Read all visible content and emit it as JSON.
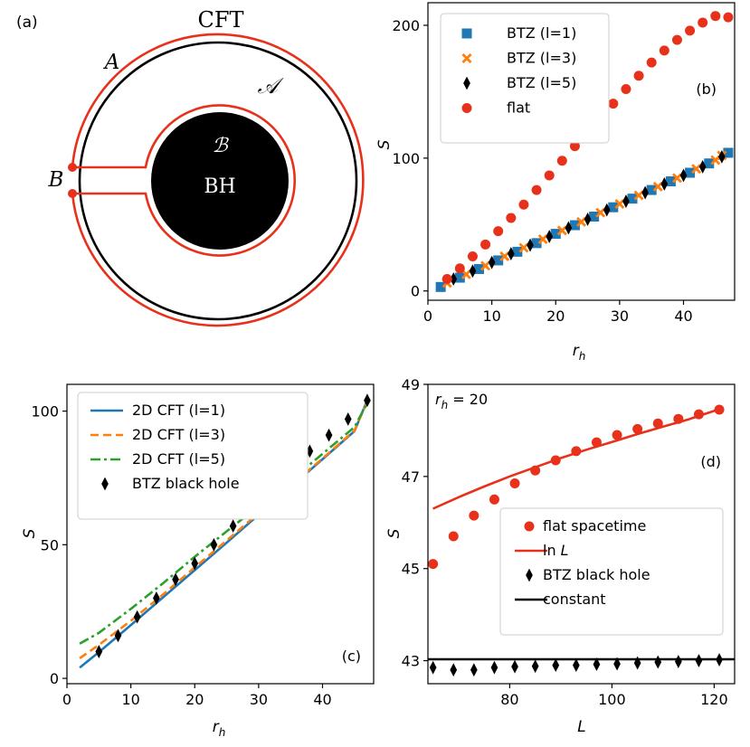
{
  "panel_labels": {
    "a": "(a)",
    "b": "(b)",
    "c": "(c)",
    "d": "(d)"
  },
  "diagram": {
    "cft": "CFT",
    "region_a": "A",
    "region_a_script": "𝒜",
    "region_b": "B",
    "region_b_script": "ℬ",
    "bh": "BH",
    "colors": {
      "boundary": "#e8311a",
      "circle": "#000000",
      "black_hole": "#000000"
    }
  },
  "chart_data": [
    {
      "panel": "b",
      "type": "scatter",
      "xlabel": "r_h",
      "ylabel": "S",
      "xlim": [
        0,
        48
      ],
      "ylim": [
        -7,
        217
      ],
      "xticks": [
        0,
        10,
        20,
        30,
        40
      ],
      "yticks": [
        0,
        100,
        200
      ],
      "legend_position": "top-left",
      "series": [
        {
          "name": "BTZ (l=1)",
          "marker": "square",
          "color": "#1f77b4",
          "x": [
            2,
            5,
            8,
            11,
            14,
            17,
            20,
            23,
            26,
            29,
            32,
            35,
            38,
            41,
            44,
            47
          ],
          "y": [
            3,
            10,
            16.5,
            23,
            29.5,
            36,
            43,
            49.5,
            56,
            63,
            69.5,
            76,
            82.5,
            89,
            96,
            104
          ]
        },
        {
          "name": "BTZ (l=3)",
          "marker": "x",
          "color": "#ff7f0e",
          "x": [
            3,
            6,
            9,
            12,
            15,
            18,
            21,
            24,
            27,
            30,
            33,
            36,
            39,
            42,
            45,
            46
          ],
          "y": [
            6,
            12.5,
            19,
            26,
            32.5,
            39,
            45.5,
            52,
            59,
            65.5,
            72,
            78.5,
            85,
            92,
            98.5,
            102
          ]
        },
        {
          "name": "BTZ (l=5)",
          "marker": "diamond",
          "color": "#000000",
          "x": [
            4,
            7,
            10,
            13,
            16,
            19,
            22,
            25,
            28,
            31,
            34,
            37,
            40,
            43,
            46
          ],
          "y": [
            9,
            15,
            21.5,
            28,
            34.5,
            41,
            47.5,
            54,
            61,
            67.5,
            74,
            80.5,
            87,
            93.5,
            101
          ]
        },
        {
          "name": "flat",
          "marker": "circle",
          "color": "#e8311a",
          "x": [
            3,
            5,
            7,
            9,
            11,
            13,
            15,
            17,
            19,
            21,
            23,
            25,
            27,
            29,
            31,
            33,
            35,
            37,
            39,
            41,
            43,
            45,
            47
          ],
          "y": [
            9,
            17,
            26,
            35,
            45,
            55,
            65,
            76,
            87,
            98,
            109,
            120,
            131,
            141,
            152,
            162,
            172,
            181,
            189,
            196,
            202,
            207,
            206
          ]
        }
      ]
    },
    {
      "panel": "c",
      "type": "line",
      "xlabel": "r_h",
      "ylabel": "S",
      "xlim": [
        0,
        48
      ],
      "ylim": [
        -2,
        110
      ],
      "xticks": [
        0,
        10,
        20,
        30,
        40
      ],
      "yticks": [
        0,
        50,
        100
      ],
      "legend_position": "top-left",
      "series": [
        {
          "name": "2D CFT (l=1)",
          "style": "solid",
          "color": "#1f77b4",
          "x": [
            2,
            5,
            10,
            15,
            20,
            25,
            30,
            35,
            40,
            45,
            47
          ],
          "y": [
            4,
            9.8,
            19.9,
            30.2,
            40.5,
            50.8,
            61.2,
            71.6,
            82,
            92.5,
            104
          ]
        },
        {
          "name": "2D CFT (l=3)",
          "style": "dashed",
          "color": "#ff7f0e",
          "x": [
            2,
            5,
            10,
            15,
            20,
            25,
            30,
            35,
            40,
            45,
            47
          ],
          "y": [
            7.5,
            12.5,
            21.5,
            31.3,
            41.5,
            51.6,
            61.8,
            72,
            82.3,
            92.7,
            103.5
          ]
        },
        {
          "name": "2D CFT (l=5)",
          "style": "dashdot",
          "color": "#2ca02c",
          "x": [
            2,
            5,
            10,
            15,
            20,
            25,
            30,
            35,
            40,
            45,
            47
          ],
          "y": [
            13,
            17,
            26,
            35.5,
            45.5,
            55,
            64.5,
            74,
            84,
            94,
            103
          ]
        },
        {
          "name": "BTZ black hole",
          "marker": "diamond",
          "color": "#000000",
          "x": [
            5,
            8,
            11,
            14,
            17,
            20,
            23,
            26,
            29,
            32,
            35,
            38,
            41,
            44,
            47
          ],
          "y": [
            10,
            16,
            23,
            30,
            37,
            43,
            50,
            57,
            64,
            71,
            77,
            85,
            91,
            97,
            104
          ]
        }
      ]
    },
    {
      "panel": "d",
      "type": "scatter",
      "annotation": "r_h = 20",
      "xlabel": "L",
      "ylabel": "S",
      "xlim": [
        64,
        124
      ],
      "ylim": [
        42.5,
        49
      ],
      "xticks": [
        80,
        100,
        120
      ],
      "yticks": [
        43,
        45,
        47,
        49
      ],
      "legend_position": "lower-right",
      "series": [
        {
          "name": "flat spacetime",
          "marker": "circle",
          "color": "#e8311a",
          "x": [
            65,
            69,
            73,
            77,
            81,
            85,
            89,
            93,
            97,
            101,
            105,
            109,
            113,
            117,
            121
          ],
          "y": [
            45.1,
            45.7,
            46.15,
            46.5,
            46.85,
            47.13,
            47.35,
            47.55,
            47.74,
            47.9,
            48.03,
            48.15,
            48.25,
            48.35,
            48.45
          ]
        },
        {
          "name": "ln L",
          "style": "solid",
          "color": "#e8311a",
          "x": [
            65,
            70,
            75,
            80,
            85,
            90,
            95,
            100,
            105,
            110,
            115,
            121
          ],
          "y": [
            46.3,
            46.55,
            46.78,
            47.0,
            47.2,
            47.4,
            47.58,
            47.75,
            47.92,
            48.08,
            48.24,
            48.46
          ]
        },
        {
          "name": "BTZ black hole",
          "marker": "diamond",
          "color": "#000000",
          "x": [
            65,
            69,
            73,
            77,
            81,
            85,
            89,
            93,
            97,
            101,
            105,
            109,
            113,
            117,
            121
          ],
          "y": [
            42.85,
            42.8,
            42.8,
            42.85,
            42.87,
            42.88,
            42.9,
            42.9,
            42.92,
            42.93,
            42.95,
            42.97,
            42.98,
            43.0,
            43.02
          ]
        },
        {
          "name": "constant",
          "style": "solid",
          "color": "#000000",
          "x": [
            64,
            124
          ],
          "y": [
            43.03,
            43.03
          ]
        }
      ]
    }
  ]
}
